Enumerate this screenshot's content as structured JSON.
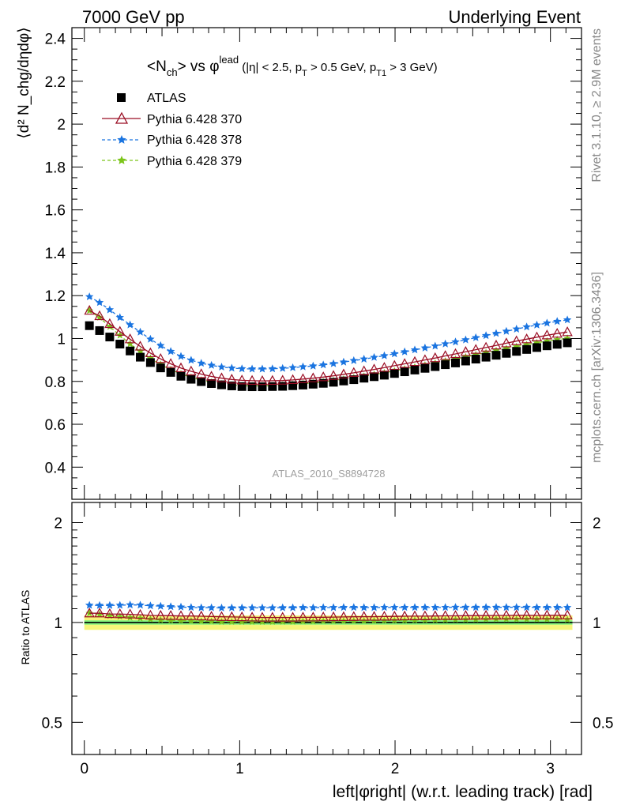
{
  "header": {
    "left": "7000 GeV pp",
    "right": "Underlying Event"
  },
  "title": {
    "main": "<N",
    "main_sub": "ch",
    "main_mid": "> vs φ",
    "main_sup": "lead",
    "cuts_open": " (|η| < 2.5, p",
    "cuts_sub1": "T",
    "cuts_mid": " > 0.5 GeV, p",
    "cuts_sub2": "T1",
    "cuts_close": " > 3 GeV)"
  },
  "side_labels": {
    "rivet": "Rivet 3.1.10, ≥ 2.9M events",
    "mcplots": "mcplots.cern.ch [arXiv:1306.3436]"
  },
  "analysis_tag": "ATLAS_2010_S8894728",
  "colors": {
    "atlas": "#000000",
    "p370": "#9a0e24",
    "p378": "#1a74e0",
    "p379": "#7cc51a",
    "band_inner": "#7ff27f",
    "band_outer": "#f5f57a"
  },
  "chart_data": [
    {
      "type": "scatter",
      "ylabel": "⟨d² N_chg/dηdφ⟩",
      "ylim": [
        0.25,
        2.45
      ],
      "xlim": [
        -0.08,
        3.2
      ],
      "yticks": [
        0.4,
        0.6,
        0.8,
        1,
        1.2,
        1.4,
        1.6,
        1.8,
        2,
        2.2,
        2.4
      ],
      "ytick_labels": [
        "0.4",
        "0.6",
        "0.8",
        "1",
        "1.2",
        "1.4",
        "1.6",
        "1.8",
        "2",
        "2.2",
        "2.4"
      ],
      "legend": [
        "ATLAS",
        "Pythia 6.428 370",
        "Pythia 6.428 378",
        "Pythia 6.428 379"
      ],
      "legend_position": "top-left",
      "x": [
        0.0327,
        0.0982,
        0.1636,
        0.2291,
        0.2945,
        0.36,
        0.4254,
        0.4909,
        0.5563,
        0.6218,
        0.6872,
        0.7527,
        0.8181,
        0.8836,
        0.949,
        1.0145,
        1.0799,
        1.1454,
        1.2108,
        1.2763,
        1.3417,
        1.4072,
        1.4726,
        1.5381,
        1.6035,
        1.669,
        1.7344,
        1.7999,
        1.8653,
        1.9308,
        1.9962,
        2.0617,
        2.1271,
        2.1926,
        2.258,
        2.3235,
        2.3889,
        2.4544,
        2.5198,
        2.5853,
        2.6507,
        2.7162,
        2.7816,
        2.8471,
        2.9125,
        2.978,
        3.0434,
        3.1089
      ],
      "series": [
        {
          "name": "ATLAS",
          "marker": "square",
          "values": [
            1.06,
            1.037,
            1.007,
            0.974,
            0.942,
            0.913,
            0.888,
            0.863,
            0.842,
            0.824,
            0.81,
            0.799,
            0.79,
            0.784,
            0.779,
            0.776,
            0.775,
            0.775,
            0.776,
            0.777,
            0.78,
            0.783,
            0.787,
            0.791,
            0.796,
            0.802,
            0.808,
            0.815,
            0.822,
            0.829,
            0.837,
            0.845,
            0.853,
            0.861,
            0.869,
            0.878,
            0.886,
            0.895,
            0.904,
            0.913,
            0.922,
            0.931,
            0.94,
            0.949,
            0.958,
            0.966,
            0.973,
            0.98
          ]
        },
        {
          "name": "Pythia 6.428 370",
          "marker": "triangle-open",
          "values": [
            1.13,
            1.105,
            1.068,
            1.032,
            0.997,
            0.963,
            0.932,
            0.905,
            0.882,
            0.862,
            0.847,
            0.834,
            0.823,
            0.815,
            0.809,
            0.805,
            0.803,
            0.802,
            0.803,
            0.804,
            0.807,
            0.811,
            0.815,
            0.82,
            0.826,
            0.833,
            0.84,
            0.848,
            0.856,
            0.864,
            0.873,
            0.882,
            0.891,
            0.9,
            0.909,
            0.919,
            0.928,
            0.938,
            0.948,
            0.958,
            0.968,
            0.978,
            0.988,
            0.997,
            1.006,
            1.015,
            1.023,
            1.03
          ]
        },
        {
          "name": "Pythia 6.428 378",
          "marker": "star",
          "values": [
            1.195,
            1.168,
            1.134,
            1.098,
            1.064,
            1.03,
            0.997,
            0.967,
            0.94,
            0.917,
            0.899,
            0.885,
            0.875,
            0.867,
            0.862,
            0.859,
            0.858,
            0.858,
            0.859,
            0.861,
            0.864,
            0.868,
            0.872,
            0.877,
            0.883,
            0.89,
            0.897,
            0.904,
            0.912,
            0.92,
            0.929,
            0.938,
            0.947,
            0.956,
            0.965,
            0.975,
            0.984,
            0.994,
            1.004,
            1.014,
            1.024,
            1.034,
            1.044,
            1.054,
            1.063,
            1.072,
            1.08,
            1.087
          ]
        },
        {
          "name": "Pythia 6.428 379",
          "marker": "star",
          "values": [
            1.13,
            1.098,
            1.055,
            1.015,
            0.975,
            0.94,
            0.908,
            0.879,
            0.855,
            0.835,
            0.819,
            0.806,
            0.796,
            0.788,
            0.783,
            0.78,
            0.779,
            0.779,
            0.78,
            0.782,
            0.785,
            0.789,
            0.793,
            0.798,
            0.804,
            0.81,
            0.817,
            0.824,
            0.832,
            0.84,
            0.849,
            0.858,
            0.867,
            0.876,
            0.885,
            0.895,
            0.904,
            0.914,
            0.924,
            0.934,
            0.944,
            0.953,
            0.962,
            0.971,
            0.98,
            0.988,
            0.995,
            1.001
          ]
        }
      ]
    },
    {
      "type": "scatter",
      "ylabel": "Ratio to ATLAS",
      "xlabel": "left|φright| (w.r.t. leading track) [rad]",
      "ylim": [
        0.4,
        2.3
      ],
      "log_y": true,
      "yticks": [
        0.5,
        1,
        2
      ],
      "ytick_labels": [
        "0.5",
        "1",
        "2"
      ],
      "xticks": [
        0,
        1,
        2,
        3
      ],
      "xtick_labels": [
        "0",
        "1",
        "2",
        "3"
      ],
      "xlim": [
        -0.08,
        3.2
      ],
      "band_inner": [
        0.985,
        1.015
      ],
      "band_outer": [
        0.95,
        1.05
      ],
      "series": [
        {
          "name": "Pythia 6.428 370",
          "values": [
            1.066,
            1.066,
            1.061,
            1.06,
            1.058,
            1.055,
            1.05,
            1.049,
            1.048,
            1.046,
            1.046,
            1.044,
            1.042,
            1.04,
            1.039,
            1.038,
            1.036,
            1.035,
            1.035,
            1.035,
            1.035,
            1.036,
            1.036,
            1.037,
            1.038,
            1.039,
            1.04,
            1.041,
            1.041,
            1.042,
            1.043,
            1.044,
            1.045,
            1.045,
            1.046,
            1.047,
            1.047,
            1.048,
            1.049,
            1.049,
            1.05,
            1.05,
            1.051,
            1.051,
            1.05,
            1.051,
            1.051,
            1.051
          ]
        },
        {
          "name": "Pythia 6.428 378",
          "values": [
            1.127,
            1.126,
            1.126,
            1.127,
            1.13,
            1.128,
            1.123,
            1.12,
            1.116,
            1.113,
            1.11,
            1.108,
            1.108,
            1.106,
            1.107,
            1.107,
            1.107,
            1.107,
            1.107,
            1.108,
            1.108,
            1.109,
            1.108,
            1.109,
            1.109,
            1.11,
            1.11,
            1.109,
            1.109,
            1.11,
            1.11,
            1.11,
            1.11,
            1.11,
            1.11,
            1.11,
            1.111,
            1.111,
            1.111,
            1.111,
            1.111,
            1.111,
            1.111,
            1.111,
            1.11,
            1.11,
            1.11,
            1.109
          ]
        },
        {
          "name": "Pythia 6.428 379",
          "values": [
            1.066,
            1.059,
            1.048,
            1.042,
            1.035,
            1.03,
            1.023,
            1.018,
            1.015,
            1.013,
            1.011,
            1.009,
            1.008,
            1.005,
            1.005,
            1.005,
            1.005,
            1.005,
            1.005,
            1.006,
            1.006,
            1.008,
            1.008,
            1.009,
            1.01,
            1.01,
            1.011,
            1.011,
            1.012,
            1.013,
            1.014,
            1.015,
            1.016,
            1.017,
            1.018,
            1.019,
            1.02,
            1.021,
            1.022,
            1.023,
            1.024,
            1.024,
            1.023,
            1.023,
            1.023,
            1.023,
            1.023,
            1.021
          ]
        }
      ]
    }
  ]
}
